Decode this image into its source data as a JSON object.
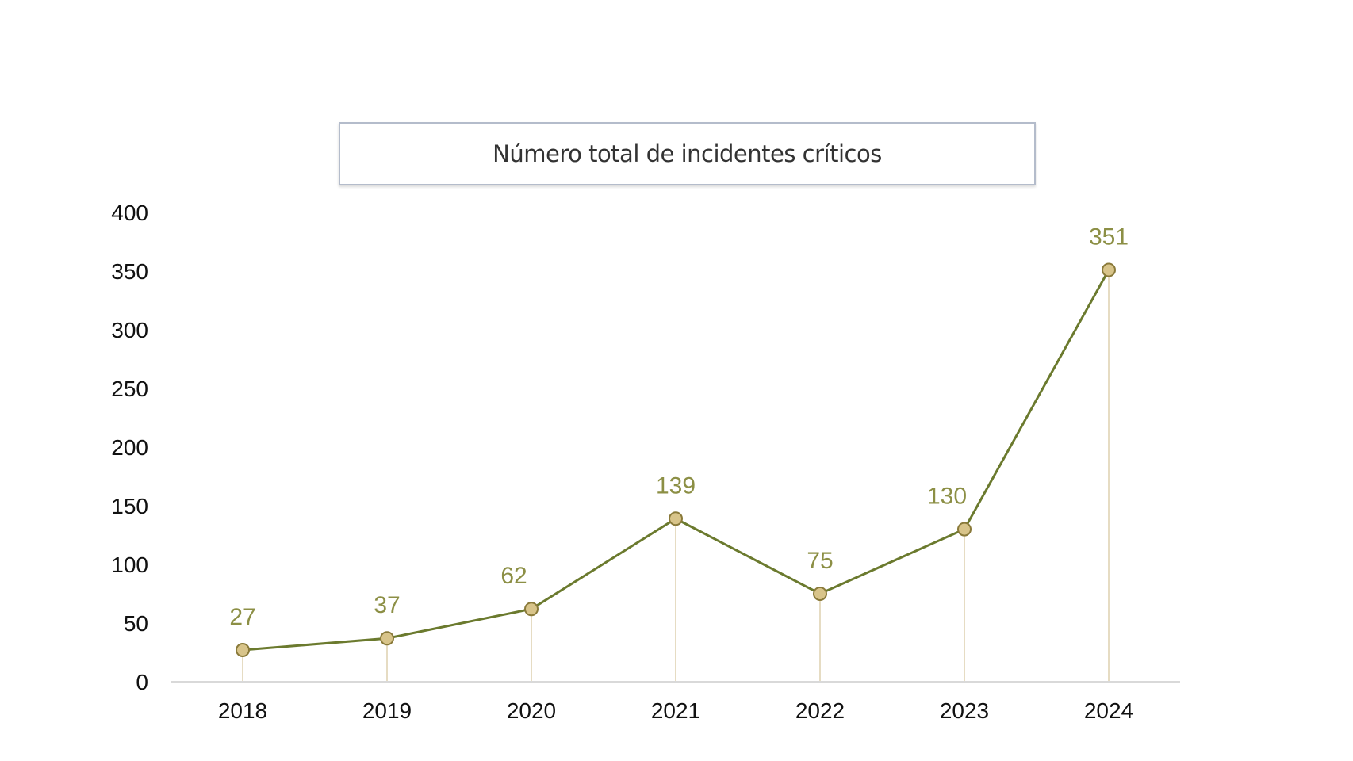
{
  "chart_data": {
    "type": "line",
    "title": "Número total de incidentes críticos",
    "xlabel": "",
    "ylabel": "",
    "categories": [
      "2018",
      "2019",
      "2020",
      "2021",
      "2022",
      "2023",
      "2024"
    ],
    "values": [
      27,
      37,
      62,
      139,
      75,
      130,
      351
    ],
    "data_labels": [
      "27",
      "37",
      "62",
      "139",
      "75",
      "130",
      "351"
    ],
    "ylim": [
      0,
      400
    ],
    "yticks": [
      "0",
      "50",
      "100",
      "150",
      "200",
      "250",
      "300",
      "350",
      "400"
    ],
    "grid": false,
    "drop_lines": true,
    "colors": {
      "line": "#6b7a2e",
      "marker_fill": "#d8c48a",
      "marker_stroke": "#8a7a3a",
      "label": "#8c8f45",
      "drop_line": "#e6dcc3",
      "axis": "#d9d9d9",
      "tick_text": "#111111"
    }
  }
}
